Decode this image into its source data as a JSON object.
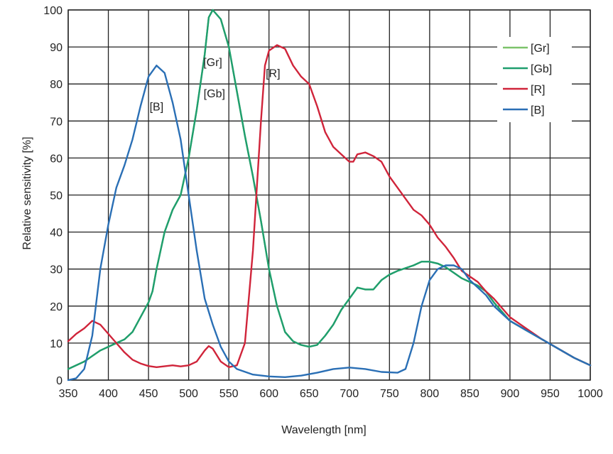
{
  "chart_data": {
    "type": "line",
    "title": "",
    "xlabel": "Wavelength [nm]",
    "ylabel": "Relative sensitivity [%]",
    "xlim": [
      350,
      1000
    ],
    "ylim": [
      0,
      100
    ],
    "xticks": [
      350,
      400,
      450,
      500,
      550,
      600,
      650,
      700,
      750,
      800,
      850,
      900,
      950,
      1000
    ],
    "yticks": [
      0,
      10,
      20,
      30,
      40,
      50,
      60,
      70,
      80,
      90,
      100
    ],
    "grid": true,
    "legend_position": "top-right",
    "series": [
      {
        "name": "[Gr]",
        "color": "#7cc36a",
        "x": [
          350,
          370,
          390,
          410,
          420,
          430,
          440,
          450,
          455,
          460,
          470,
          480,
          490,
          500,
          510,
          520,
          525,
          530,
          540,
          550,
          560,
          570,
          580,
          590,
          600,
          610,
          620,
          630,
          640,
          650,
          660,
          670,
          680,
          690,
          700,
          710,
          720,
          730,
          740,
          750,
          760,
          780,
          790,
          800,
          810,
          820,
          830,
          840,
          850,
          860,
          870,
          880,
          900,
          920,
          940,
          960,
          980,
          1000
        ],
        "y": [
          3,
          5,
          8,
          10,
          11,
          13,
          17,
          21,
          24,
          30,
          40,
          46,
          50,
          60,
          73,
          88,
          98,
          100,
          97.5,
          90,
          78,
          66,
          55,
          43,
          30,
          20,
          13,
          10.5,
          9.5,
          9,
          9.5,
          12,
          15,
          19,
          22,
          25,
          24.5,
          24.5,
          27,
          28.5,
          29.5,
          31,
          32,
          32,
          31.5,
          30.5,
          29,
          27.5,
          26.5,
          25.5,
          24,
          21,
          16,
          13.5,
          11,
          8.5,
          6,
          4
        ]
      },
      {
        "name": "[Gb]",
        "color": "#1f9e6e",
        "x": [
          350,
          370,
          390,
          410,
          420,
          430,
          440,
          450,
          455,
          460,
          470,
          480,
          490,
          500,
          510,
          520,
          525,
          530,
          540,
          550,
          560,
          570,
          580,
          590,
          600,
          610,
          620,
          630,
          640,
          650,
          660,
          670,
          680,
          690,
          700,
          710,
          720,
          730,
          740,
          750,
          760,
          780,
          790,
          800,
          810,
          820,
          830,
          840,
          850,
          860,
          870,
          880,
          900,
          920,
          940,
          960,
          980,
          1000
        ],
        "y": [
          3,
          5,
          8,
          10,
          11,
          13,
          17,
          21,
          24,
          30,
          40,
          46,
          50,
          60,
          73,
          88,
          98,
          100,
          97.5,
          90,
          78,
          66,
          55,
          43,
          30,
          20,
          13,
          10.5,
          9.5,
          9,
          9.5,
          12,
          15,
          19,
          22,
          25,
          24.5,
          24.5,
          27,
          28.5,
          29.5,
          31,
          32,
          32,
          31.5,
          30.5,
          29,
          27.5,
          26.5,
          25.5,
          24,
          21,
          16,
          13.5,
          11,
          8.5,
          6,
          4
        ]
      },
      {
        "name": "[R]",
        "color": "#d0243a",
        "x": [
          350,
          360,
          370,
          380,
          390,
          400,
          410,
          420,
          430,
          440,
          450,
          460,
          480,
          490,
          500,
          510,
          520,
          525,
          530,
          540,
          550,
          560,
          570,
          580,
          590,
          595,
          600,
          610,
          620,
          630,
          640,
          650,
          660,
          670,
          680,
          690,
          700,
          705,
          710,
          720,
          730,
          740,
          750,
          760,
          770,
          780,
          790,
          800,
          810,
          820,
          830,
          840,
          850,
          860,
          870,
          880,
          890,
          900,
          920,
          940,
          960,
          980,
          1000
        ],
        "y": [
          10.5,
          12.5,
          14,
          16,
          15,
          12.5,
          10,
          7.5,
          5.5,
          4.5,
          3.8,
          3.5,
          4,
          3.7,
          4,
          5,
          8,
          9.2,
          8.5,
          5,
          3.5,
          4,
          10,
          35,
          70,
          85,
          89,
          90.5,
          89.5,
          85,
          82,
          80,
          74,
          67,
          63,
          61,
          59,
          59,
          61,
          61.5,
          60.5,
          59,
          55,
          52,
          49,
          46,
          44.5,
          42,
          38.5,
          36,
          33,
          29.5,
          28,
          26.5,
          24,
          22,
          19.5,
          17,
          14,
          11,
          8.5,
          6,
          4
        ]
      },
      {
        "name": "[B]",
        "color": "#2a6fb5",
        "x": [
          350,
          360,
          370,
          380,
          390,
          400,
          410,
          420,
          430,
          440,
          450,
          460,
          470,
          480,
          490,
          500,
          510,
          520,
          530,
          540,
          550,
          560,
          580,
          600,
          620,
          640,
          660,
          680,
          700,
          720,
          740,
          760,
          770,
          780,
          790,
          800,
          810,
          820,
          830,
          840,
          850,
          860,
          870,
          880,
          900,
          920,
          940,
          960,
          980,
          1000
        ],
        "y": [
          0,
          0.5,
          3,
          12,
          30,
          42,
          52,
          58,
          65,
          74,
          82,
          85,
          83,
          75,
          65,
          50,
          35,
          22,
          15,
          9,
          5,
          3,
          1.5,
          1,
          0.8,
          1.2,
          2,
          3,
          3.4,
          3,
          2.2,
          2,
          3,
          10,
          20,
          27,
          30,
          31,
          31,
          30,
          27,
          25,
          23,
          20,
          16,
          13.5,
          11,
          8.5,
          6,
          4
        ]
      }
    ],
    "annotations": [
      {
        "text": "[B]",
        "x": 460,
        "y": 74
      },
      {
        "text": "[Gr]",
        "x": 530,
        "y": 86
      },
      {
        "text": "[Gb]",
        "x": 532,
        "y": 77.5
      },
      {
        "text": "[R]",
        "x": 605,
        "y": 83
      }
    ]
  }
}
